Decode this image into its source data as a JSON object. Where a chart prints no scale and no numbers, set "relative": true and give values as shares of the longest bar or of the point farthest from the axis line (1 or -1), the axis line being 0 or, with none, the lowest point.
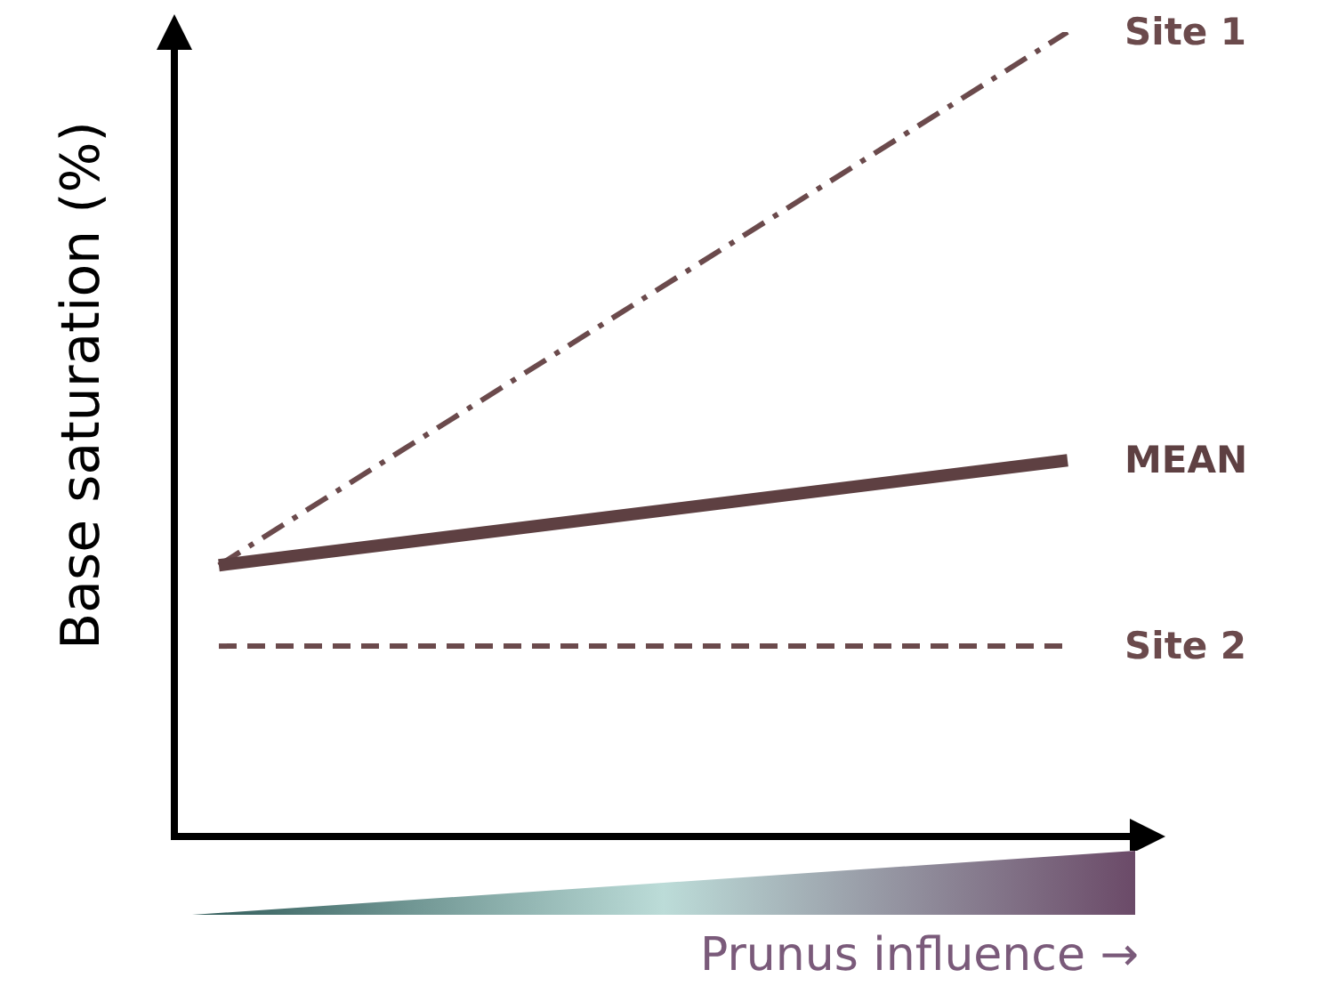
{
  "chart_data": {
    "type": "line",
    "relative": true,
    "ylabel": "Base saturation (%)",
    "xlabel": "Prunus influence →",
    "categories": [
      null,
      null
    ],
    "marker": "none",
    "series": [
      {
        "name": "Site 1",
        "color": "#6b4a4c",
        "values": [
          0.34,
          1
        ],
        "line_style": "dashdot"
      },
      {
        "name": "MEAN",
        "color": "#5e4042",
        "values": [
          0.34,
          0.47
        ],
        "line_style": "solid"
      },
      {
        "name": "Site 2",
        "color": "#6b4a4c",
        "values": [
          0.24,
          0.24
        ],
        "line_style": "dashed"
      }
    ]
  }
}
